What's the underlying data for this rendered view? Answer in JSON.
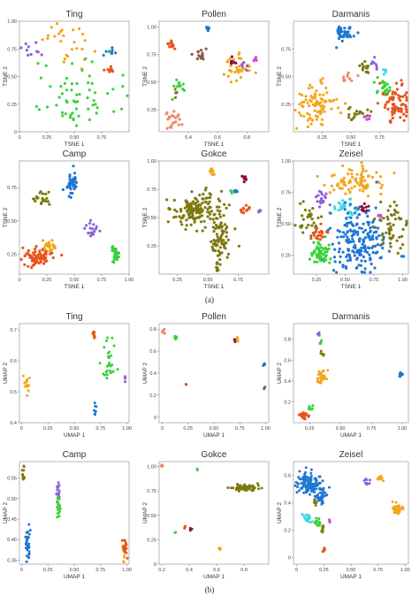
{
  "captions": [
    "(a)",
    "(b)"
  ],
  "palette": {
    "orange": "#f4a51c",
    "green": "#3ad13a",
    "blue": "#1f77d4",
    "olive": "#7c7a0f",
    "purple": "#8b63d6",
    "red": "#e8541c",
    "salmon": "#f08a6c",
    "pink": "#e8a6cf",
    "cyan": "#41d6e8",
    "maroon": "#8a0f3a",
    "brown": "#8c564b",
    "magenta": "#d04ad0"
  },
  "chart_data": [
    {
      "type": "scatter",
      "title": "Ting",
      "xlabel": "TSNE 1",
      "ylabel": "TSNE 2",
      "xlim": [
        0,
        1
      ],
      "ylim": [
        0,
        1
      ],
      "xticks": [
        "0",
        "0.25",
        "0.50",
        "0.75"
      ],
      "yticks": [
        "0",
        "0.25",
        "0.50",
        "0.75",
        "1.00"
      ],
      "clusters": [
        {
          "color": "purple",
          "cx": 0.1,
          "cy": 0.75,
          "sx": 0.06,
          "sy": 0.05,
          "n": 10
        },
        {
          "color": "orange",
          "cx": 0.46,
          "cy": 0.82,
          "sx": 0.11,
          "sy": 0.1,
          "n": 26
        },
        {
          "color": "blue",
          "cx": 0.82,
          "cy": 0.72,
          "sx": 0.03,
          "sy": 0.02,
          "n": 8
        },
        {
          "color": "red",
          "cx": 0.82,
          "cy": 0.56,
          "sx": 0.025,
          "sy": 0.025,
          "n": 8
        },
        {
          "color": "green",
          "cx": 0.48,
          "cy": 0.32,
          "sx": 0.2,
          "sy": 0.15,
          "n": 60
        }
      ]
    },
    {
      "type": "scatter",
      "title": "Pollen",
      "xlabel": "TSNE 1",
      "ylabel": "TSNE 2",
      "xlim": [
        0.2,
        0.95
      ],
      "ylim": [
        0.05,
        1.05
      ],
      "xticks": [
        "0.4",
        "0.6",
        "0.8"
      ],
      "yticks": [
        "0.25",
        "0.50",
        "0.75",
        "1.00"
      ],
      "clusters": [
        {
          "color": "blue",
          "cx": 0.53,
          "cy": 0.98,
          "sx": 0.007,
          "sy": 0.015,
          "n": 8
        },
        {
          "color": "red",
          "cx": 0.28,
          "cy": 0.84,
          "sx": 0.012,
          "sy": 0.025,
          "n": 12
        },
        {
          "color": "brown",
          "cx": 0.48,
          "cy": 0.74,
          "sx": 0.025,
          "sy": 0.025,
          "n": 15
        },
        {
          "color": "orange",
          "cx": 0.73,
          "cy": 0.62,
          "sx": 0.05,
          "sy": 0.06,
          "n": 34
        },
        {
          "color": "maroon",
          "cx": 0.7,
          "cy": 0.67,
          "sx": 0.012,
          "sy": 0.02,
          "n": 7
        },
        {
          "color": "purple",
          "cx": 0.78,
          "cy": 0.66,
          "sx": 0.012,
          "sy": 0.02,
          "n": 6
        },
        {
          "color": "magenta",
          "cx": 0.86,
          "cy": 0.69,
          "sx": 0.01,
          "sy": 0.015,
          "n": 5
        },
        {
          "color": "green",
          "cx": 0.34,
          "cy": 0.45,
          "sx": 0.015,
          "sy": 0.04,
          "n": 12
        },
        {
          "color": "olive",
          "cx": 0.31,
          "cy": 0.4,
          "sx": 0.01,
          "sy": 0.02,
          "n": 5
        },
        {
          "color": "salmon",
          "cx": 0.29,
          "cy": 0.16,
          "sx": 0.03,
          "sy": 0.035,
          "n": 24
        }
      ]
    },
    {
      "type": "scatter",
      "title": "Darmanis",
      "xlabel": "TSNE 1",
      "ylabel": "TSNE 2",
      "xlim": [
        0,
        1
      ],
      "ylim": [
        0,
        1
      ],
      "xticks": [
        "0.25",
        "0.50",
        "0.75"
      ],
      "yticks": [
        "0.25",
        "0.50",
        "0.75"
      ],
      "clusters": [
        {
          "color": "blue",
          "cx": 0.45,
          "cy": 0.9,
          "sx": 0.05,
          "sy": 0.04,
          "n": 40
        },
        {
          "color": "olive",
          "cx": 0.62,
          "cy": 0.58,
          "sx": 0.025,
          "sy": 0.03,
          "n": 14
        },
        {
          "color": "purple",
          "cx": 0.7,
          "cy": 0.62,
          "sx": 0.015,
          "sy": 0.03,
          "n": 8
        },
        {
          "color": "cyan",
          "cx": 0.8,
          "cy": 0.54,
          "sx": 0.015,
          "sy": 0.02,
          "n": 6
        },
        {
          "color": "salmon",
          "cx": 0.47,
          "cy": 0.48,
          "sx": 0.03,
          "sy": 0.025,
          "n": 10
        },
        {
          "color": "orange",
          "cx": 0.2,
          "cy": 0.26,
          "sx": 0.08,
          "sy": 0.09,
          "n": 90
        },
        {
          "color": "green",
          "cx": 0.78,
          "cy": 0.38,
          "sx": 0.03,
          "sy": 0.04,
          "n": 22
        },
        {
          "color": "red",
          "cx": 0.9,
          "cy": 0.26,
          "sx": 0.06,
          "sy": 0.08,
          "n": 70
        },
        {
          "color": "olive",
          "cx": 0.55,
          "cy": 0.17,
          "sx": 0.05,
          "sy": 0.03,
          "n": 18
        },
        {
          "color": "magenta",
          "cx": 0.63,
          "cy": 0.13,
          "sx": 0.015,
          "sy": 0.015,
          "n": 5
        }
      ]
    },
    {
      "type": "scatter",
      "title": "Camp",
      "xlabel": "TSNE 1",
      "ylabel": "TSNE 2",
      "xlim": [
        0,
        1
      ],
      "ylim": [
        0.1,
        0.95
      ],
      "xticks": [
        "0",
        "0.25",
        "0.50",
        "0.75",
        "1.00"
      ],
      "yticks": [
        "0.25",
        "0.50",
        "0.75"
      ],
      "clusters": [
        {
          "color": "blue",
          "cx": 0.48,
          "cy": 0.78,
          "sx": 0.03,
          "sy": 0.045,
          "n": 45
        },
        {
          "color": "olive",
          "cx": 0.2,
          "cy": 0.66,
          "sx": 0.035,
          "sy": 0.03,
          "n": 22
        },
        {
          "color": "purple",
          "cx": 0.66,
          "cy": 0.43,
          "sx": 0.03,
          "sy": 0.025,
          "n": 18
        },
        {
          "color": "orange",
          "cx": 0.28,
          "cy": 0.32,
          "sx": 0.04,
          "sy": 0.03,
          "n": 28
        },
        {
          "color": "red",
          "cx": 0.15,
          "cy": 0.23,
          "sx": 0.07,
          "sy": 0.035,
          "n": 75
        },
        {
          "color": "green",
          "cx": 0.87,
          "cy": 0.24,
          "sx": 0.025,
          "sy": 0.04,
          "n": 30
        }
      ]
    },
    {
      "type": "scatter",
      "title": "Gokce",
      "xlabel": "TSNE 1",
      "ylabel": "TSNE 2",
      "xlim": [
        0.1,
        1.0
      ],
      "ylim": [
        0,
        1
      ],
      "xticks": [
        "0.25",
        "0.50",
        "0.75"
      ],
      "yticks": [
        "0.25",
        "0.50",
        "0.75",
        "1.00"
      ],
      "clusters": [
        {
          "color": "olive",
          "cx": 0.4,
          "cy": 0.56,
          "sx": 0.1,
          "sy": 0.08,
          "n": 140
        },
        {
          "color": "olive",
          "cx": 0.6,
          "cy": 0.3,
          "sx": 0.04,
          "sy": 0.1,
          "n": 70
        },
        {
          "color": "olive",
          "cx": 0.58,
          "cy": 0.06,
          "sx": 0.01,
          "sy": 0.03,
          "n": 10
        },
        {
          "color": "orange",
          "cx": 0.54,
          "cy": 0.9,
          "sx": 0.012,
          "sy": 0.015,
          "n": 10
        },
        {
          "color": "maroon",
          "cx": 0.8,
          "cy": 0.85,
          "sx": 0.015,
          "sy": 0.02,
          "n": 10
        },
        {
          "color": "red",
          "cx": 0.8,
          "cy": 0.58,
          "sx": 0.02,
          "sy": 0.02,
          "n": 12
        },
        {
          "color": "green",
          "cx": 0.7,
          "cy": 0.72,
          "sx": 0.008,
          "sy": 0.01,
          "n": 5
        },
        {
          "color": "blue",
          "cx": 0.73,
          "cy": 0.74,
          "sx": 0.006,
          "sy": 0.008,
          "n": 4
        },
        {
          "color": "purple",
          "cx": 0.93,
          "cy": 0.56,
          "sx": 0.008,
          "sy": 0.01,
          "n": 5
        }
      ]
    },
    {
      "type": "scatter",
      "title": "Zeisel",
      "xlabel": "TSNE 1",
      "ylabel": "TSNE 2",
      "xlim": [
        0.05,
        1.05
      ],
      "ylim": [
        0.1,
        1.0
      ],
      "xticks": [
        "0.25",
        "0.50",
        "0.75",
        "1.00"
      ],
      "yticks": [
        "0.25",
        "0.50",
        "0.75",
        "1.00"
      ],
      "clusters": [
        {
          "color": "orange",
          "cx": 0.6,
          "cy": 0.85,
          "sx": 0.15,
          "sy": 0.06,
          "n": 80
        },
        {
          "color": "purple",
          "cx": 0.3,
          "cy": 0.7,
          "sx": 0.03,
          "sy": 0.03,
          "n": 18
        },
        {
          "color": "cyan",
          "cx": 0.5,
          "cy": 0.62,
          "sx": 0.06,
          "sy": 0.04,
          "n": 35
        },
        {
          "color": "blue",
          "cx": 0.62,
          "cy": 0.35,
          "sx": 0.12,
          "sy": 0.12,
          "n": 200
        },
        {
          "color": "olive",
          "cx": 0.9,
          "cy": 0.48,
          "sx": 0.07,
          "sy": 0.1,
          "n": 50
        },
        {
          "color": "olive",
          "cx": 0.16,
          "cy": 0.55,
          "sx": 0.05,
          "sy": 0.07,
          "n": 30
        },
        {
          "color": "green",
          "cx": 0.28,
          "cy": 0.27,
          "sx": 0.04,
          "sy": 0.05,
          "n": 55
        },
        {
          "color": "red",
          "cx": 0.28,
          "cy": 0.42,
          "sx": 0.03,
          "sy": 0.04,
          "n": 20
        },
        {
          "color": "maroon",
          "cx": 0.66,
          "cy": 0.63,
          "sx": 0.02,
          "sy": 0.02,
          "n": 10
        },
        {
          "color": "magenta",
          "cx": 0.8,
          "cy": 0.56,
          "sx": 0.01,
          "sy": 0.015,
          "n": 5
        }
      ]
    },
    {
      "type": "scatter",
      "title": "Ting",
      "xlabel": "UMAP 1",
      "ylabel": "UMAP 2",
      "xlim": [
        -0.02,
        1.02
      ],
      "ylim": [
        0.4,
        0.72
      ],
      "xticks": [
        "0",
        "0.25",
        "0.50",
        "0.75",
        "1.00"
      ],
      "yticks": [
        "0.4",
        "0.5",
        "0.6",
        "0.7"
      ],
      "clusters": [
        {
          "color": "red",
          "cx": 0.69,
          "cy": 0.68,
          "sx": 0.008,
          "sy": 0.008,
          "n": 8
        },
        {
          "color": "green",
          "cx": 0.83,
          "cy": 0.6,
          "sx": 0.035,
          "sy": 0.04,
          "n": 30
        },
        {
          "color": "orange",
          "cx": 0.04,
          "cy": 0.52,
          "sx": 0.015,
          "sy": 0.02,
          "n": 12
        },
        {
          "color": "purple",
          "cx": 0.98,
          "cy": 0.54,
          "sx": 0.006,
          "sy": 0.006,
          "n": 5
        },
        {
          "color": "blue",
          "cx": 0.7,
          "cy": 0.44,
          "sx": 0.006,
          "sy": 0.01,
          "n": 7
        }
      ]
    },
    {
      "type": "scatter",
      "title": "Pollen",
      "xlabel": "UMAP 1",
      "ylabel": "UMAP 2",
      "xlim": [
        -0.03,
        1.03
      ],
      "ylim": [
        -0.05,
        0.85
      ],
      "xticks": [
        "0",
        "0.25",
        "0.50",
        "0.75",
        "1.00"
      ],
      "yticks": [
        "0",
        "0.2",
        "0.4",
        "0.6",
        "0.8"
      ],
      "clusters": [
        {
          "color": "salmon",
          "cx": 0.01,
          "cy": 0.78,
          "sx": 0.008,
          "sy": 0.012,
          "n": 8
        },
        {
          "color": "green",
          "cx": 0.13,
          "cy": 0.72,
          "sx": 0.008,
          "sy": 0.01,
          "n": 5
        },
        {
          "color": "orange",
          "cx": 0.72,
          "cy": 0.7,
          "sx": 0.012,
          "sy": 0.012,
          "n": 8
        },
        {
          "color": "maroon",
          "cx": 0.7,
          "cy": 0.7,
          "sx": 0.004,
          "sy": 0.006,
          "n": 3
        },
        {
          "color": "blue",
          "cx": 0.98,
          "cy": 0.48,
          "sx": 0.006,
          "sy": 0.01,
          "n": 5
        },
        {
          "color": "red",
          "cx": 0.23,
          "cy": 0.3,
          "sx": 0.004,
          "sy": 0.006,
          "n": 3
        },
        {
          "color": "brown",
          "cx": 0.99,
          "cy": 0.27,
          "sx": 0.004,
          "sy": 0.006,
          "n": 3
        }
      ]
    },
    {
      "type": "scatter",
      "title": "Darmanis",
      "xlabel": "UMAP 1",
      "ylabel": "UMAP 2",
      "xlim": [
        0.12,
        1.05
      ],
      "ylim": [
        0,
        0.95
      ],
      "xticks": [
        "0.25",
        "0.50",
        "0.75",
        "1.00"
      ],
      "yticks": [
        "0.2",
        "0.4",
        "0.6",
        "0.8"
      ],
      "clusters": [
        {
          "color": "purple",
          "cx": 0.33,
          "cy": 0.85,
          "sx": 0.006,
          "sy": 0.015,
          "n": 5
        },
        {
          "color": "green",
          "cx": 0.34,
          "cy": 0.77,
          "sx": 0.006,
          "sy": 0.015,
          "n": 5
        },
        {
          "color": "olive",
          "cx": 0.35,
          "cy": 0.66,
          "sx": 0.008,
          "sy": 0.02,
          "n": 6
        },
        {
          "color": "orange",
          "cx": 0.35,
          "cy": 0.43,
          "sx": 0.02,
          "sy": 0.03,
          "n": 30
        },
        {
          "color": "blue",
          "cx": 0.99,
          "cy": 0.46,
          "sx": 0.008,
          "sy": 0.012,
          "n": 14
        },
        {
          "color": "red",
          "cx": 0.2,
          "cy": 0.07,
          "sx": 0.02,
          "sy": 0.02,
          "n": 28
        },
        {
          "color": "green",
          "cx": 0.26,
          "cy": 0.15,
          "sx": 0.01,
          "sy": 0.015,
          "n": 7
        }
      ]
    },
    {
      "type": "scatter",
      "title": "Camp",
      "xlabel": "UMAP 1",
      "ylabel": "UMAP 2",
      "xlim": [
        -0.02,
        1.02
      ],
      "ylim": [
        0.34,
        0.59
      ],
      "xticks": [
        "0",
        "0.25",
        "0.50",
        "0.75",
        "1.00"
      ],
      "yticks": [
        "0.35",
        "0.40",
        "0.45",
        "0.50",
        "0.55"
      ],
      "clusters": [
        {
          "color": "olive",
          "cx": 0.02,
          "cy": 0.56,
          "sx": 0.008,
          "sy": 0.012,
          "n": 14
        },
        {
          "color": "purple",
          "cx": 0.35,
          "cy": 0.52,
          "sx": 0.008,
          "sy": 0.012,
          "n": 16
        },
        {
          "color": "green",
          "cx": 0.35,
          "cy": 0.47,
          "sx": 0.008,
          "sy": 0.015,
          "n": 22
        },
        {
          "color": "blue",
          "cx": 0.06,
          "cy": 0.385,
          "sx": 0.01,
          "sy": 0.02,
          "n": 30
        },
        {
          "color": "orange",
          "cx": 0.97,
          "cy": 0.365,
          "sx": 0.01,
          "sy": 0.01,
          "n": 16
        },
        {
          "color": "red",
          "cx": 0.98,
          "cy": 0.38,
          "sx": 0.01,
          "sy": 0.012,
          "n": 18
        }
      ]
    },
    {
      "type": "scatter",
      "title": "Gokce",
      "xlabel": "UMAP 1",
      "ylabel": "UMAP 2",
      "xlim": [
        0.18,
        0.98
      ],
      "ylim": [
        0,
        1.05
      ],
      "xticks": [
        "0.2",
        "0.4",
        "0.6",
        "0.8"
      ],
      "yticks": [
        "0",
        "0.25",
        "0.50",
        "0.75",
        "1.00"
      ],
      "clusters": [
        {
          "color": "olive",
          "cx": 0.8,
          "cy": 0.78,
          "sx": 0.05,
          "sy": 0.015,
          "n": 80
        },
        {
          "color": "salmon",
          "cx": 0.2,
          "cy": 1.0,
          "sx": 0.005,
          "sy": 0.01,
          "n": 5
        },
        {
          "color": "green",
          "cx": 0.46,
          "cy": 0.97,
          "sx": 0.004,
          "sy": 0.008,
          "n": 3
        },
        {
          "color": "red",
          "cx": 0.37,
          "cy": 0.38,
          "sx": 0.006,
          "sy": 0.01,
          "n": 4
        },
        {
          "color": "maroon",
          "cx": 0.41,
          "cy": 0.36,
          "sx": 0.004,
          "sy": 0.006,
          "n": 3
        },
        {
          "color": "green",
          "cx": 0.3,
          "cy": 0.32,
          "sx": 0.003,
          "sy": 0.006,
          "n": 2
        },
        {
          "color": "orange",
          "cx": 0.62,
          "cy": 0.16,
          "sx": 0.004,
          "sy": 0.01,
          "n": 4
        }
      ]
    },
    {
      "type": "scatter",
      "title": "Zeisel",
      "xlabel": "UMAP 1",
      "ylabel": "UMAP 2",
      "xlim": [
        -0.03,
        1.03
      ],
      "ylim": [
        -0.05,
        0.7
      ],
      "xticks": [
        "0",
        "0.25",
        "0.50",
        "0.75",
        "1.00"
      ],
      "yticks": [
        "0",
        "0.2",
        "0.4",
        "0.6"
      ],
      "clusters": [
        {
          "color": "blue",
          "cx": 0.12,
          "cy": 0.54,
          "sx": 0.06,
          "sy": 0.04,
          "n": 110
        },
        {
          "color": "blue",
          "cx": 0.22,
          "cy": 0.45,
          "sx": 0.025,
          "sy": 0.03,
          "n": 40
        },
        {
          "color": "olive",
          "cx": 0.17,
          "cy": 0.4,
          "sx": 0.01,
          "sy": 0.015,
          "n": 8
        },
        {
          "color": "orange",
          "cx": 0.93,
          "cy": 0.35,
          "sx": 0.025,
          "sy": 0.02,
          "n": 40
        },
        {
          "color": "orange",
          "cx": 0.77,
          "cy": 0.58,
          "sx": 0.015,
          "sy": 0.015,
          "n": 12
        },
        {
          "color": "purple",
          "cx": 0.65,
          "cy": 0.55,
          "sx": 0.015,
          "sy": 0.015,
          "n": 12
        },
        {
          "color": "cyan",
          "cx": 0.1,
          "cy": 0.29,
          "sx": 0.02,
          "sy": 0.015,
          "n": 20
        },
        {
          "color": "green",
          "cx": 0.2,
          "cy": 0.26,
          "sx": 0.015,
          "sy": 0.015,
          "n": 14
        },
        {
          "color": "olive",
          "cx": 0.24,
          "cy": 0.21,
          "sx": 0.01,
          "sy": 0.015,
          "n": 10
        },
        {
          "color": "red",
          "cx": 0.25,
          "cy": 0.06,
          "sx": 0.008,
          "sy": 0.012,
          "n": 7
        },
        {
          "color": "magenta",
          "cx": 0.3,
          "cy": 0.27,
          "sx": 0.006,
          "sy": 0.008,
          "n": 4
        }
      ]
    }
  ]
}
